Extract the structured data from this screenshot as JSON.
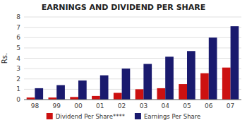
{
  "chart_data": {
    "type": "bar",
    "title": "EARNINGS AND DIVIDEND PER SHARE",
    "categories": [
      "98",
      "99",
      "00",
      "01",
      "02",
      "03",
      "04",
      "05",
      "06",
      "07"
    ],
    "series": [
      {
        "name": "Dividend Per Share****",
        "color": "#cc1111",
        "values": [
          0.2,
          0.2,
          0.25,
          0.35,
          0.65,
          1.0,
          1.1,
          1.5,
          2.55,
          3.1
        ]
      },
      {
        "name": "Earnings Per Share",
        "color": "#1a1a6e",
        "values": [
          1.1,
          1.4,
          1.85,
          2.35,
          3.0,
          3.45,
          4.15,
          4.7,
          6.0,
          7.1
        ]
      }
    ],
    "ylabel": "Rs.",
    "ylim": [
      0,
      8
    ],
    "yticks": [
      0,
      1,
      2,
      3,
      4,
      5,
      6,
      7,
      8
    ],
    "legend": "bottom"
  }
}
